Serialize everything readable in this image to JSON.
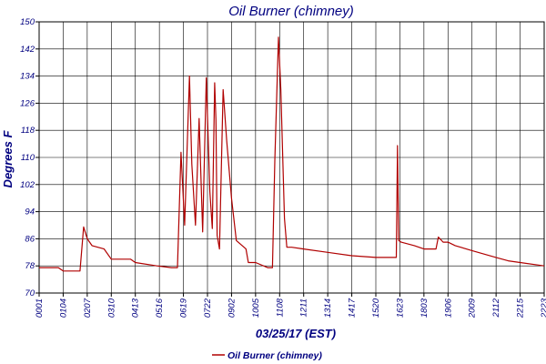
{
  "chart_data": {
    "type": "line",
    "title": "Oil Burner (chimney)",
    "xlabel": "03/25/17 (EST)",
    "ylabel": "Degrees F",
    "ylim": [
      70,
      150
    ],
    "yticks": [
      "70",
      "78",
      "86",
      "94",
      "102",
      "110",
      "118",
      "126",
      "134",
      "142",
      "150"
    ],
    "xticks": [
      "0001",
      "0104",
      "0207",
      "0310",
      "0413",
      "0516",
      "0619",
      "0722",
      "0902",
      "1005",
      "1108",
      "1211",
      "1314",
      "1417",
      "1520",
      "1623",
      "1803",
      "1906",
      "2009",
      "2112",
      "2215",
      "2223"
    ],
    "grid": true,
    "legend": "bottom-center",
    "colors": {
      "series": "#b00000",
      "text": "#000080",
      "axis": "#000000"
    },
    "series": [
      {
        "name": "Oil Burner (chimney)",
        "x": [
          0,
          0.8,
          1.0,
          1.3,
          1.7,
          1.85,
          2.0,
          2.2,
          2.7,
          3.0,
          3.8,
          4.0,
          4.9,
          5.5,
          5.75,
          5.9,
          6.05,
          6.25,
          6.35,
          6.5,
          6.65,
          6.8,
          6.95,
          7.1,
          7.2,
          7.3,
          7.35,
          7.4,
          7.5,
          7.65,
          7.8,
          8.0,
          8.2,
          8.6,
          8.7,
          9.0,
          9.5,
          9.7,
          9.8,
          9.95,
          10.05,
          10.2,
          10.3,
          10.5,
          11.0,
          12.0,
          13.0,
          14.0,
          14.85,
          14.9,
          14.95,
          15.05,
          15.6,
          16.0,
          16.5,
          16.6,
          16.8,
          17.0,
          17.3,
          18.0,
          18.5,
          19.0,
          19.5,
          20.0,
          21.0
        ],
        "values": [
          77.5,
          77.5,
          76.5,
          76.5,
          76.5,
          89.5,
          86,
          84,
          83,
          80,
          80,
          79,
          78,
          77.5,
          77.5,
          111.5,
          90,
          134,
          108,
          90,
          121.5,
          88,
          133.5,
          100,
          89,
          132,
          121,
          87,
          83,
          130,
          115,
          98,
          85.5,
          83,
          79,
          79,
          77.5,
          77.5,
          109,
          145.5,
          130,
          92,
          83.5,
          83.5,
          83,
          82,
          81,
          80.5,
          80.5,
          113.5,
          85.5,
          85,
          84,
          83,
          83,
          86.5,
          85,
          85,
          84,
          82.5,
          81.5,
          80.5,
          79.5,
          79,
          78
        ]
      }
    ]
  }
}
